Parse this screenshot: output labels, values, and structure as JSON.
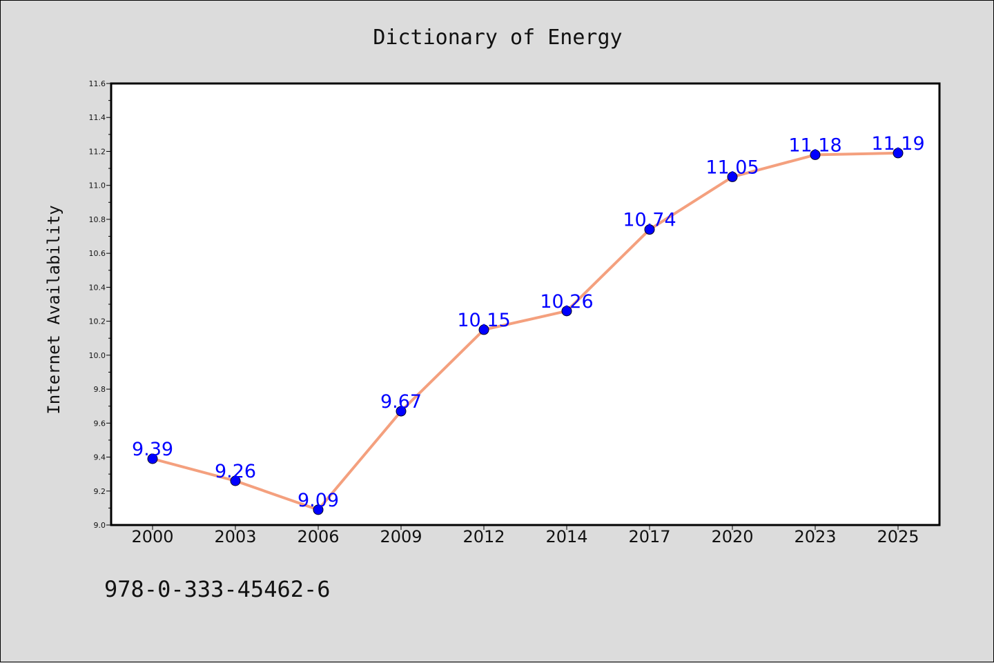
{
  "chart_data": {
    "type": "line",
    "title": "Dictionary of Energy",
    "xlabel": "",
    "ylabel": "Internet Availability",
    "categories": [
      "2000",
      "2003",
      "2006",
      "2009",
      "2012",
      "2014",
      "2017",
      "2020",
      "2023",
      "2025"
    ],
    "series": [
      {
        "values": [
          9.39,
          9.26,
          9.09,
          9.67,
          10.15,
          10.26,
          10.74,
          11.05,
          11.18,
          11.19
        ],
        "labels": [
          "9.39",
          "9.26",
          "9.09",
          "9.67",
          "10.15",
          "10.26",
          "10.74",
          "11.05",
          "11.18",
          "11.19"
        ]
      }
    ],
    "ylim": [
      9.0,
      11.6
    ],
    "yticks": [
      "9.0",
      "9.2",
      "9.4",
      "9.6",
      "9.8",
      "10.0",
      "10.2",
      "10.4",
      "10.6",
      "10.8",
      "11.0",
      "11.2",
      "11.4",
      "11.6"
    ],
    "grid": false,
    "legend": "none",
    "colors": {
      "line": "#f4a07e",
      "marker": "#0000ff",
      "label": "#0000ff",
      "background": "#dcdcdc",
      "plot_bg": "#ffffff"
    }
  },
  "footer_text": "978-0-333-45462-6"
}
